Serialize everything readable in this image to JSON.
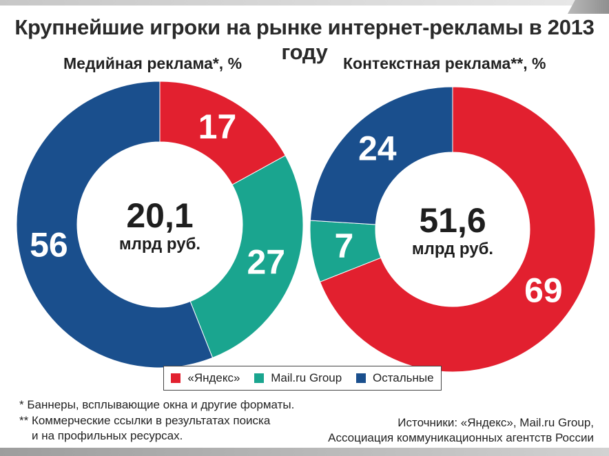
{
  "header": {
    "title": "Крупнейшие игроки на рынке интернет-рекламы в 2013 году"
  },
  "legend": {
    "items": [
      {
        "label": "«Яндекс»",
        "color": "#e2202f"
      },
      {
        "label": "Mail.ru Group",
        "color": "#1aa58f"
      },
      {
        "label": "Остальные",
        "color": "#1a4f8d"
      }
    ]
  },
  "chart_data": [
    {
      "type": "pie",
      "subtype": "donut",
      "title": "Медийная реклама*, %",
      "center_value": "20,1",
      "center_unit": "млрд руб.",
      "slices": [
        {
          "name": "«Яндекс»",
          "value": 17,
          "label": "17"
        },
        {
          "name": "Mail.ru Group",
          "value": 27,
          "label": "27"
        },
        {
          "name": "Остальные",
          "value": 56,
          "label": "56"
        }
      ]
    },
    {
      "type": "pie",
      "subtype": "donut",
      "title": "Контекстная реклама**, %",
      "center_value": "51,6",
      "center_unit": "млрд руб.",
      "slices": [
        {
          "name": "«Яндекс»",
          "value": 69,
          "label": "69"
        },
        {
          "name": "Mail.ru Group",
          "value": 7,
          "label": "7"
        },
        {
          "name": "Остальные",
          "value": 24,
          "label": "24"
        }
      ]
    }
  ],
  "footnotes": {
    "note1": "* Баннеры, всплывающие окна и другие форматы.",
    "note2_line1": "** Коммерческие ссылки в результатах поиска",
    "note2_line2": "и на профильных ресурсах."
  },
  "source": {
    "line1": "Источники: «Яндекс», Mail.ru Group,",
    "line2": "Ассоциация коммуникационных агентств России"
  }
}
